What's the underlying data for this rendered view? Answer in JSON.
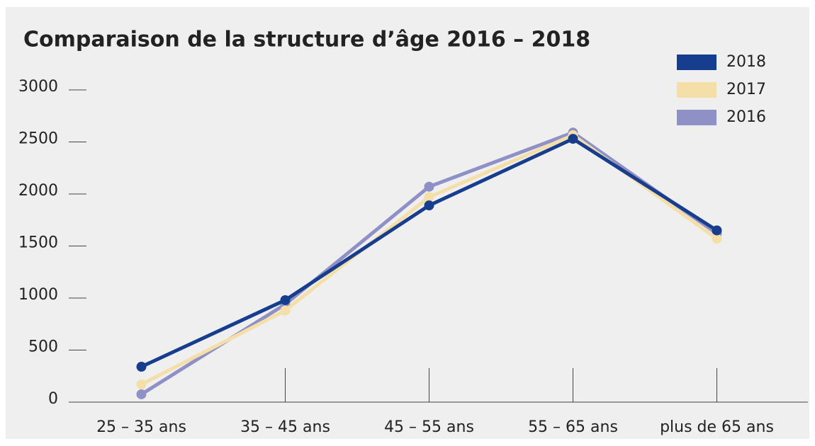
{
  "chart_data": {
    "type": "line",
    "title": "Comparaison de la structure d’âge 2016 – 2018",
    "categories": [
      "25 – 35 ans",
      "35 – 45 ans",
      "45 – 55 ans",
      "55 – 65 ans",
      "plus de 65 ans"
    ],
    "series": [
      {
        "name": "2018",
        "color": "#173d8f",
        "values": [
          340,
          980,
          1890,
          2530,
          1650
        ]
      },
      {
        "name": "2017",
        "color": "#f4dfa8",
        "values": [
          170,
          880,
          1970,
          2565,
          1570
        ]
      },
      {
        "name": "2016",
        "color": "#8f90c6",
        "values": [
          75,
          940,
          2070,
          2590,
          1620
        ]
      }
    ],
    "ylim": [
      0,
      3000
    ],
    "yticks": [
      0,
      500,
      1000,
      1500,
      2000,
      2500,
      3000
    ]
  }
}
